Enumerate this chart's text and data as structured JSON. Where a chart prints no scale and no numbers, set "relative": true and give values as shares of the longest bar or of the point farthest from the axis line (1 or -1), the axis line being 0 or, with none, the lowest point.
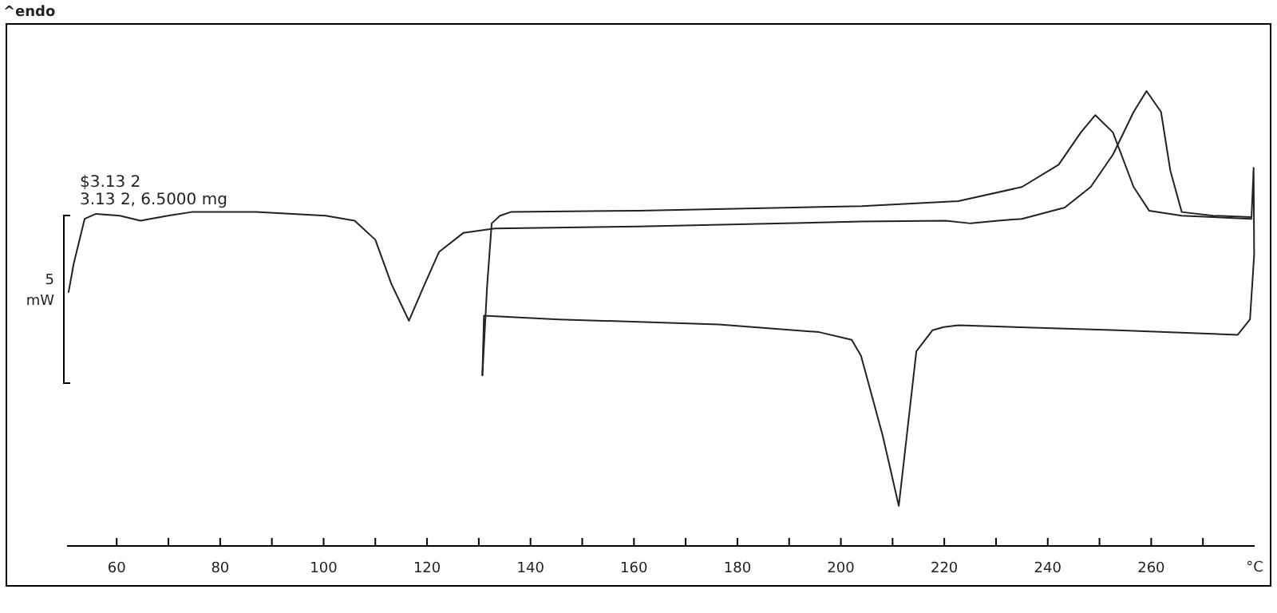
{
  "chart_data": {
    "type": "line",
    "relative": true,
    "xlabel": "°C",
    "ylabel": "5 mW",
    "annotations": [
      "^endo",
      "$3.13 2",
      "3.13 2, 6.5000 mg"
    ],
    "xlim": [
      50.4,
      280
    ],
    "xticks": [
      60,
      {
        "value": 70,
        "label": null
      },
      80,
      {
        "value": 90,
        "label": null
      },
      100,
      {
        "value": 110,
        "label": null
      },
      120,
      {
        "value": 130,
        "label": null
      },
      140,
      {
        "value": 150,
        "label": null
      },
      160,
      {
        "value": 170,
        "label": null
      },
      180,
      {
        "value": 190,
        "label": null
      },
      200,
      {
        "value": 210,
        "label": null
      },
      220,
      {
        "value": 230,
        "label": null
      },
      240,
      {
        "value": 250,
        "label": null
      },
      260,
      {
        "value": 270,
        "label": null
      }
    ],
    "series": [
      {
        "color": "#222222",
        "x": [
          50.7,
          51.7,
          53.8,
          56.0,
          60.6,
          64.6,
          69.9,
          74.5,
          86.9,
          100.4,
          106.0,
          110.0,
          113.1,
          116.5,
          119.3,
          122.3,
          127.0,
          133.1,
          160.9,
          204.1,
          220.2,
          225.1,
          230.4,
          235.0,
          243.3,
          248.3,
          252.6,
          256.6,
          259.1,
          261.9,
          263.7,
          265.9,
          272.0,
          279.4
        ],
        "values": [
          0.558,
          0.621,
          0.719,
          0.73,
          0.726,
          0.715,
          0.726,
          0.734,
          0.734,
          0.726,
          0.715,
          0.673,
          0.576,
          0.495,
          0.569,
          0.646,
          0.688,
          0.698,
          0.702,
          0.713,
          0.715,
          0.709,
          0.715,
          0.719,
          0.744,
          0.789,
          0.86,
          0.954,
          1.0,
          0.954,
          0.825,
          0.734,
          0.726,
          0.723
        ]
      },
      {
        "color": "#222222",
        "x": [
          279.4,
          279.8,
          279.9,
          279.1,
          276.7,
          253.5,
          222.7,
          219.9,
          217.7,
          214.6,
          211.2,
          208.1,
          203.9,
          202.1,
          195.8,
          176.4,
          145.5,
          131.0,
          130.7
        ],
        "values": [
          0.723,
          0.831,
          0.639,
          0.498,
          0.464,
          0.474,
          0.485,
          0.481,
          0.474,
          0.428,
          0.088,
          0.242,
          0.418,
          0.453,
          0.47,
          0.487,
          0.498,
          0.506,
          0.375
        ]
      },
      {
        "color": "#222222",
        "x": [
          130.7,
          131.6,
          132.5,
          134.1,
          136.2,
          160.9,
          204.1,
          222.7,
          235.0,
          242.1,
          246.4,
          249.2,
          252.6,
          256.6,
          259.6,
          265.9,
          279.4
        ],
        "values": [
          0.375,
          0.569,
          0.709,
          0.726,
          0.734,
          0.737,
          0.747,
          0.758,
          0.789,
          0.838,
          0.909,
          0.947,
          0.909,
          0.789,
          0.737,
          0.726,
          0.719
        ]
      }
    ]
  }
}
